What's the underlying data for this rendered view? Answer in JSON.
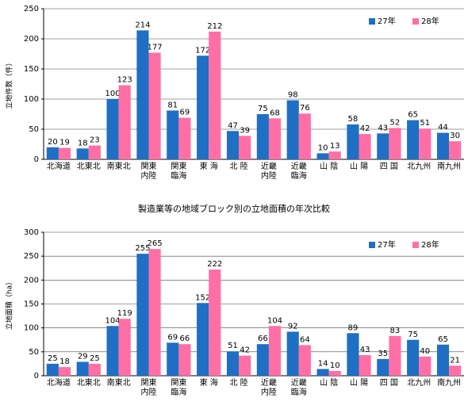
{
  "chart_data": [
    {
      "type": "bar",
      "y_label": "立地件数（件）",
      "categories": [
        "北海道",
        "北東北",
        "南東北",
        "関東\n内陸",
        "関東\n臨海",
        "東 海",
        "北 陸",
        "近畿\n内陸",
        "近畿\n臨海",
        "山 陰",
        "山 陽",
        "四 国",
        "北九州",
        "南九州"
      ],
      "series": [
        {
          "name": "27年",
          "color": "#1f6fc4",
          "values": [
            20,
            18,
            100,
            214,
            81,
            172,
            47,
            75,
            98,
            10,
            58,
            43,
            65,
            44
          ]
        },
        {
          "name": "28年",
          "color": "#ff6fa6",
          "values": [
            19,
            23,
            123,
            177,
            69,
            212,
            39,
            68,
            76,
            13,
            42,
            52,
            51,
            30
          ]
        }
      ],
      "ylim": [
        0,
        250
      ],
      "yticks": [
        0,
        50,
        100,
        150,
        200,
        250
      ],
      "grid": true,
      "legend": "upper right"
    },
    {
      "type": "bar",
      "title": "製造業等の地域ブロック別の立地面積の年次比較",
      "y_label": "立地面積（ha）",
      "categories": [
        "北海道",
        "北東北",
        "南東北",
        "関東\n内陸",
        "関東\n臨海",
        "東 海",
        "北 陸",
        "近畿\n内陸",
        "近畿\n臨海",
        "山 陰",
        "山 陽",
        "四 国",
        "北九州",
        "南九州"
      ],
      "series": [
        {
          "name": "27年",
          "color": "#1f6fc4",
          "values": [
            25,
            29,
            104,
            255,
            69,
            152,
            51,
            66,
            92,
            14,
            89,
            35,
            75,
            65
          ]
        },
        {
          "name": "28年",
          "color": "#ff6fa6",
          "values": [
            18,
            25,
            119,
            265,
            66,
            222,
            42,
            104,
            64,
            10,
            43,
            83,
            40,
            21
          ]
        }
      ],
      "ylim": [
        0,
        300
      ],
      "yticks": [
        0,
        50,
        100,
        150,
        200,
        250,
        300
      ],
      "grid": true,
      "legend": "upper right"
    }
  ]
}
